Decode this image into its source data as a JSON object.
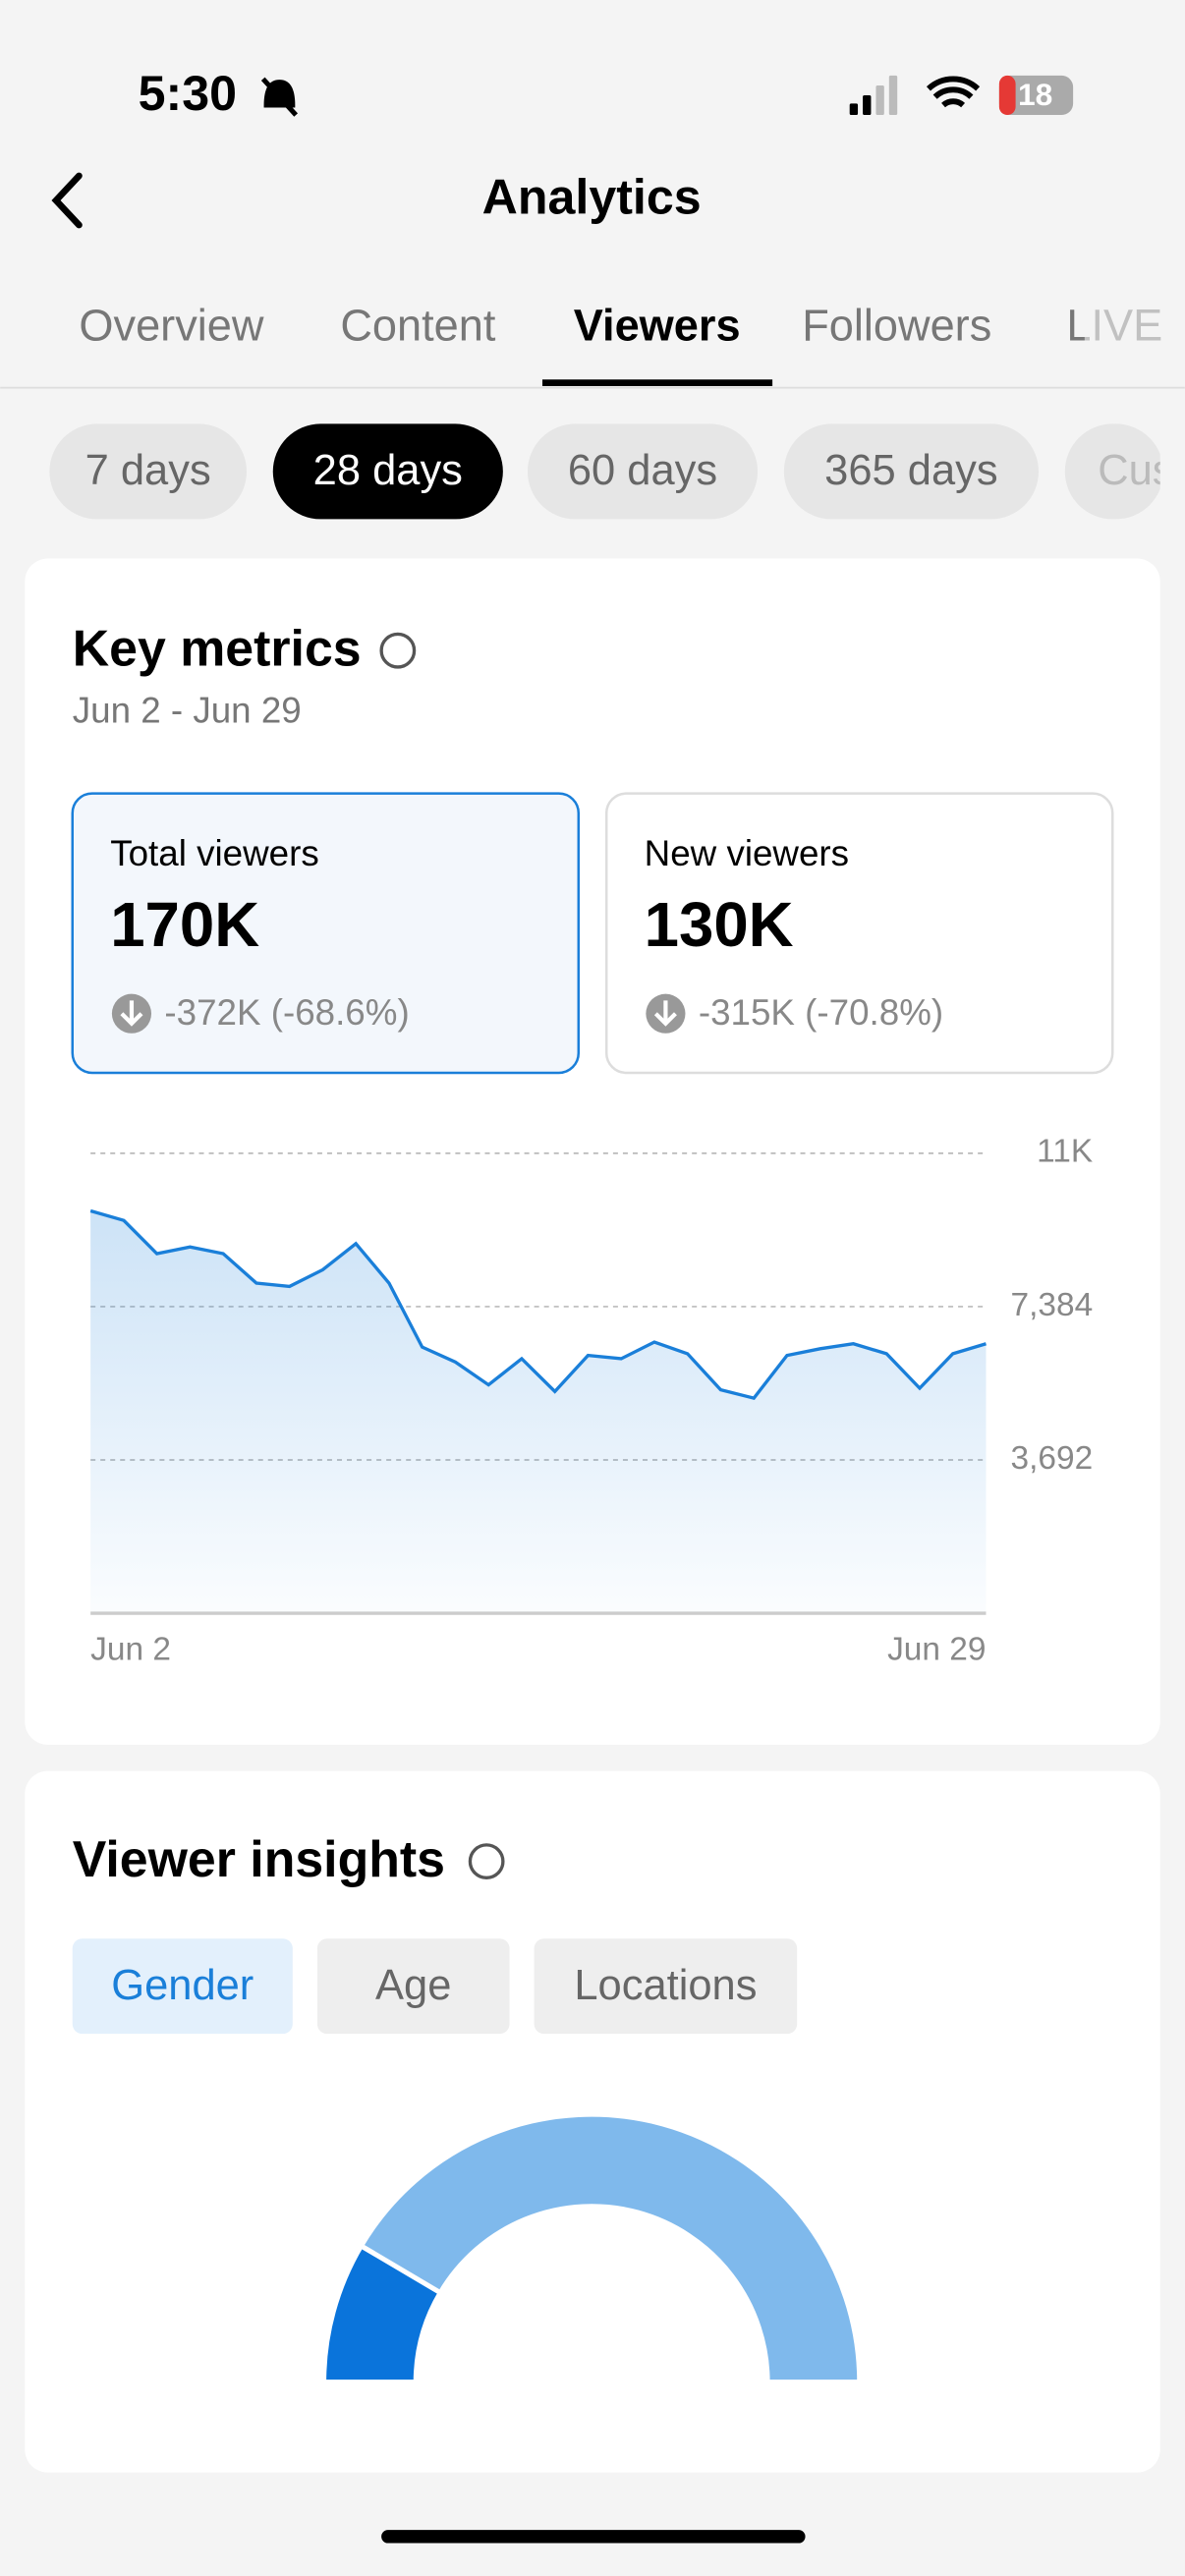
{
  "status": {
    "time": "5:30",
    "battery": "18"
  },
  "header": {
    "title": "Analytics"
  },
  "tabs": [
    "Overview",
    "Content",
    "Viewers",
    "Followers",
    "LIVE"
  ],
  "periods": [
    "7 days",
    "28 days",
    "60 days",
    "365 days",
    "Cus"
  ],
  "key_metrics": {
    "title": "Key metrics",
    "date_range": "Jun 2 - Jun 29",
    "cards": [
      {
        "label": "Total viewers",
        "value": "170K",
        "change": "-372K (-68.6%)"
      },
      {
        "label": "New viewers",
        "value": "130K",
        "change": "-315K (-70.8%)"
      }
    ]
  },
  "chart_data": [
    {
      "type": "area",
      "color": "#1a7fd9",
      "categories": [
        "Jun 2",
        null,
        null,
        null,
        null,
        null,
        null,
        null,
        null,
        null,
        null,
        null,
        null,
        null,
        null,
        null,
        null,
        null,
        null,
        null,
        null,
        null,
        null,
        null,
        null,
        null,
        null,
        "Jun 29"
      ],
      "values": [
        9690,
        9460,
        8660,
        8820,
        8660,
        7950,
        7870,
        8270,
        8900,
        7950,
        6410,
        6050,
        5500,
        6130,
        5340,
        6210,
        6130,
        6530,
        6250,
        5380,
        5180,
        6210,
        6370,
        6490,
        6250,
        5420,
        6250,
        6490
      ],
      "ylim": [
        0,
        11076
      ],
      "yticks": [
        {
          "value": 3692,
          "label": "3,692"
        },
        {
          "value": 7384,
          "label": "7,384"
        },
        {
          "value": 11076,
          "label": "11K"
        }
      ],
      "grid": true
    },
    {
      "type": "semi-donut",
      "values": [
        17,
        83
      ],
      "colors": [
        "#0a74db",
        "#7fb9ec"
      ]
    }
  ],
  "insights": {
    "title": "Viewer insights",
    "tabs": [
      "Gender",
      "Age",
      "Locations"
    ]
  }
}
